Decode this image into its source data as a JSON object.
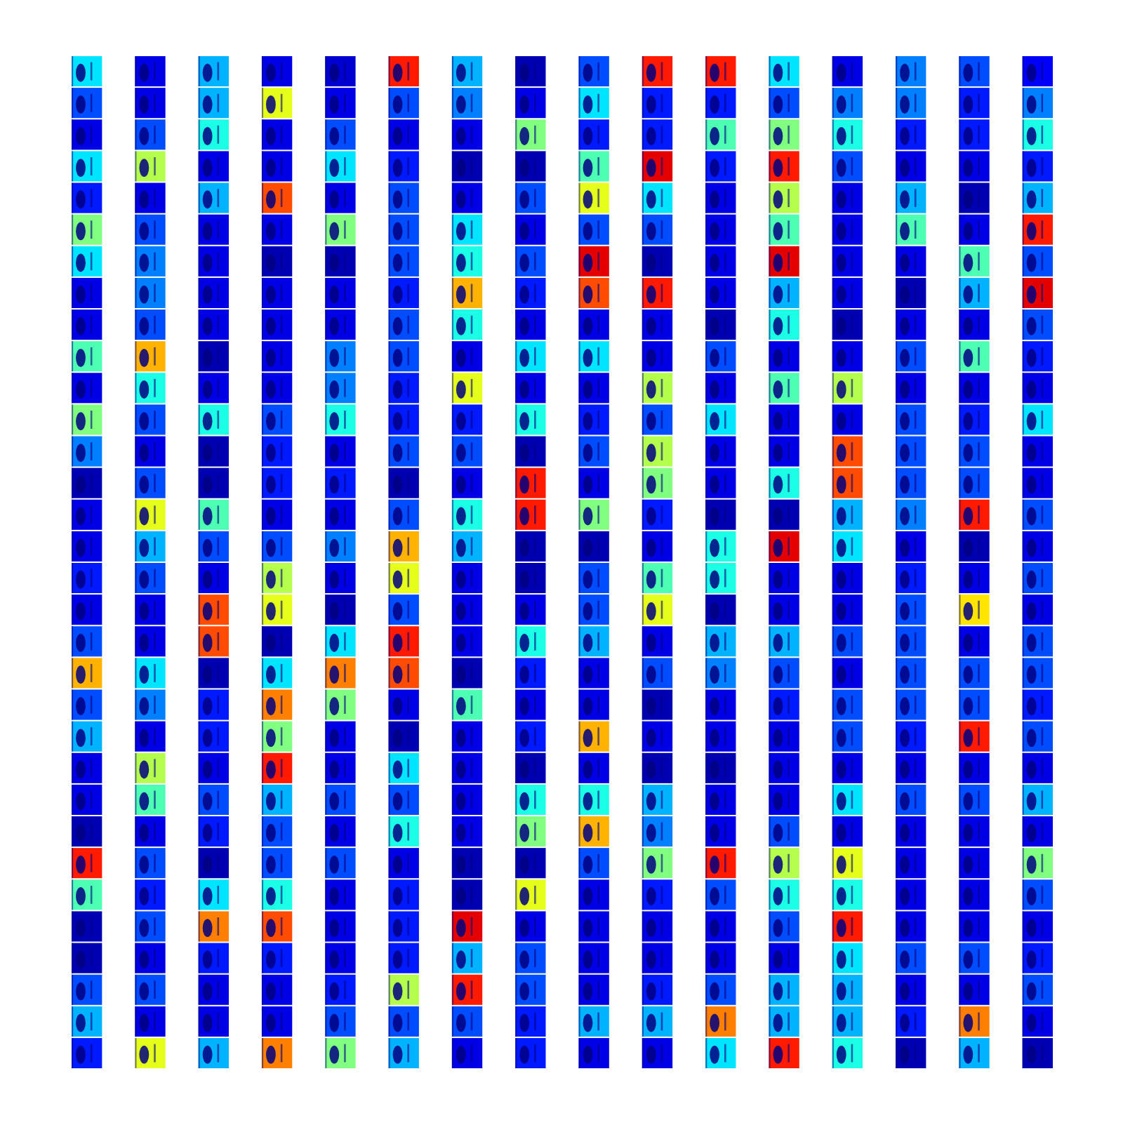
{
  "chart_data": {
    "type": "heatmap_grid",
    "color": "jet",
    "color_range": [
      0,
      1
    ],
    "tick_labels": false,
    "values": [
      [
        0.35,
        0.1,
        0.3,
        0.1,
        0.08,
        0.85,
        0.3,
        0.05,
        0.2,
        0.85,
        0.85,
        0.35,
        0.1,
        0.25,
        0.2,
        0.12
      ],
      [
        0.2,
        0.1,
        0.3,
        0.6,
        0.1,
        0.2,
        0.25,
        0.1,
        0.35,
        0.15,
        0.15,
        0.2,
        0.25,
        0.25,
        0.15,
        0.25
      ],
      [
        0.1,
        0.2,
        0.4,
        0.1,
        0.2,
        0.1,
        0.1,
        0.5,
        0.15,
        0.15,
        0.45,
        0.5,
        0.4,
        0.15,
        0.15,
        0.4
      ],
      [
        0.35,
        0.55,
        0.1,
        0.1,
        0.35,
        0.15,
        0.05,
        0.05,
        0.45,
        0.9,
        0.15,
        0.85,
        0.2,
        0.1,
        0.1,
        0.15
      ],
      [
        0.15,
        0.1,
        0.3,
        0.8,
        0.1,
        0.2,
        0.1,
        0.2,
        0.6,
        0.35,
        0.1,
        0.55,
        0.1,
        0.3,
        0.05,
        0.3
      ],
      [
        0.5,
        0.2,
        0.1,
        0.1,
        0.5,
        0.2,
        0.35,
        0.1,
        0.2,
        0.2,
        0.1,
        0.45,
        0.1,
        0.45,
        0.1,
        0.85
      ],
      [
        0.35,
        0.25,
        0.1,
        0.05,
        0.05,
        0.2,
        0.4,
        0.2,
        0.9,
        0.05,
        0.1,
        0.9,
        0.1,
        0.1,
        0.45,
        0.2
      ],
      [
        0.1,
        0.25,
        0.1,
        0.1,
        0.1,
        0.15,
        0.7,
        0.15,
        0.8,
        0.85,
        0.1,
        0.3,
        0.1,
        0.05,
        0.3,
        0.9
      ],
      [
        0.1,
        0.2,
        0.1,
        0.1,
        0.1,
        0.2,
        0.4,
        0.1,
        0.1,
        0.1,
        0.05,
        0.4,
        0.05,
        0.1,
        0.1,
        0.2
      ],
      [
        0.45,
        0.7,
        0.05,
        0.1,
        0.25,
        0.2,
        0.1,
        0.35,
        0.35,
        0.1,
        0.2,
        0.1,
        0.1,
        0.2,
        0.45,
        0.15
      ],
      [
        0.1,
        0.4,
        0.1,
        0.1,
        0.25,
        0.15,
        0.6,
        0.1,
        0.1,
        0.55,
        0.1,
        0.45,
        0.55,
        0.1,
        0.1,
        0.1
      ],
      [
        0.5,
        0.2,
        0.4,
        0.2,
        0.4,
        0.15,
        0.15,
        0.4,
        0.15,
        0.2,
        0.35,
        0.1,
        0.1,
        0.2,
        0.15,
        0.35
      ],
      [
        0.25,
        0.1,
        0.05,
        0.15,
        0.1,
        0.2,
        0.2,
        0.05,
        0.2,
        0.55,
        0.1,
        0.1,
        0.8,
        0.2,
        0.2,
        0.1
      ],
      [
        0.05,
        0.2,
        0.05,
        0.15,
        0.15,
        0.05,
        0.1,
        0.85,
        0.1,
        0.5,
        0.1,
        0.4,
        0.8,
        0.2,
        0.2,
        0.1
      ],
      [
        0.1,
        0.6,
        0.45,
        0.1,
        0.1,
        0.2,
        0.4,
        0.85,
        0.5,
        0.15,
        0.05,
        0.05,
        0.3,
        0.25,
        0.85,
        0.2
      ],
      [
        0.1,
        0.3,
        0.2,
        0.2,
        0.25,
        0.7,
        0.3,
        0.05,
        0.05,
        0.1,
        0.4,
        0.9,
        0.35,
        0.1,
        0.05,
        0.1
      ],
      [
        0.15,
        0.2,
        0.1,
        0.55,
        0.1,
        0.6,
        0.1,
        0.05,
        0.2,
        0.45,
        0.4,
        0.1,
        0.1,
        0.15,
        0.1,
        0.2
      ],
      [
        0.1,
        0.1,
        0.8,
        0.6,
        0.05,
        0.2,
        0.1,
        0.1,
        0.2,
        0.6,
        0.05,
        0.1,
        0.1,
        0.2,
        0.65,
        0.1
      ],
      [
        0.2,
        0.1,
        0.8,
        0.05,
        0.35,
        0.85,
        0.1,
        0.4,
        0.3,
        0.1,
        0.3,
        0.3,
        0.2,
        0.2,
        0.1,
        0.2
      ],
      [
        0.7,
        0.35,
        0.05,
        0.35,
        0.75,
        0.8,
        0.05,
        0.15,
        0.1,
        0.2,
        0.25,
        0.2,
        0.1,
        0.2,
        0.2,
        0.2
      ],
      [
        0.2,
        0.25,
        0.15,
        0.75,
        0.5,
        0.1,
        0.45,
        0.1,
        0.1,
        0.05,
        0.1,
        0.15,
        0.2,
        0.2,
        0.2,
        0.15
      ],
      [
        0.3,
        0.1,
        0.15,
        0.5,
        0.1,
        0.05,
        0.1,
        0.15,
        0.7,
        0.1,
        0.1,
        0.1,
        0.2,
        0.15,
        0.85,
        0.2
      ],
      [
        0.1,
        0.55,
        0.1,
        0.85,
        0.1,
        0.35,
        0.1,
        0.05,
        0.1,
        0.05,
        0.05,
        0.1,
        0.1,
        0.1,
        0.1,
        0.1
      ],
      [
        0.1,
        0.45,
        0.2,
        0.3,
        0.2,
        0.2,
        0.1,
        0.4,
        0.4,
        0.3,
        0.1,
        0.1,
        0.35,
        0.2,
        0.2,
        0.3
      ],
      [
        0.05,
        0.1,
        0.15,
        0.2,
        0.1,
        0.4,
        0.1,
        0.5,
        0.7,
        0.25,
        0.1,
        0.2,
        0.1,
        0.1,
        0.1,
        0.1
      ],
      [
        0.85,
        0.2,
        0.05,
        0.2,
        0.2,
        0.1,
        0.05,
        0.05,
        0.2,
        0.5,
        0.85,
        0.55,
        0.6,
        0.1,
        0.1,
        0.5
      ],
      [
        0.45,
        0.15,
        0.35,
        0.4,
        0.1,
        0.15,
        0.05,
        0.6,
        0.1,
        0.15,
        0.2,
        0.4,
        0.4,
        0.1,
        0.1,
        0.2
      ],
      [
        0.05,
        0.2,
        0.75,
        0.8,
        0.1,
        0.15,
        0.9,
        0.1,
        0.1,
        0.1,
        0.1,
        0.2,
        0.85,
        0.1,
        0.1,
        0.1
      ],
      [
        0.05,
        0.1,
        0.15,
        0.15,
        0.1,
        0.15,
        0.3,
        0.2,
        0.1,
        0.1,
        0.1,
        0.1,
        0.35,
        0.2,
        0.2,
        0.15
      ],
      [
        0.2,
        0.2,
        0.1,
        0.1,
        0.15,
        0.55,
        0.85,
        0.2,
        0.1,
        0.15,
        0.2,
        0.3,
        0.3,
        0.1,
        0.1,
        0.2
      ],
      [
        0.3,
        0.1,
        0.1,
        0.1,
        0.2,
        0.2,
        0.2,
        0.15,
        0.3,
        0.3,
        0.75,
        0.3,
        0.3,
        0.15,
        0.75,
        0.1
      ],
      [
        0.15,
        0.6,
        0.3,
        0.75,
        0.5,
        0.3,
        0.1,
        0.15,
        0.1,
        0.1,
        0.35,
        0.85,
        0.4,
        0.05,
        0.3,
        0.05
      ]
    ]
  }
}
